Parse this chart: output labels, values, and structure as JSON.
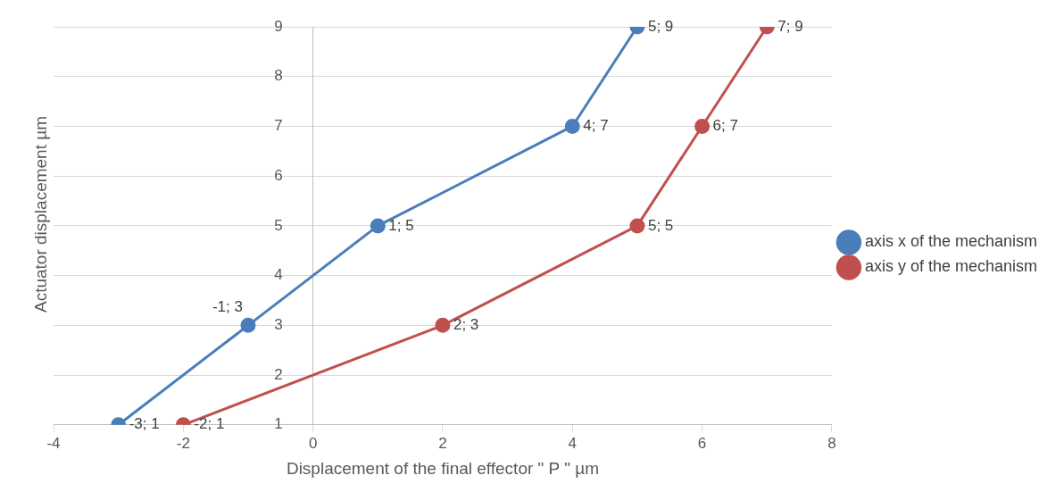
{
  "chart_data": {
    "type": "line",
    "xlabel": "Displacement of the final effector \" P \" µm",
    "ylabel": "Actuator displacement µm",
    "series": [
      {
        "name": "axis x of the mechanism",
        "color": "#4a7ebb",
        "x": [
          -3,
          -1,
          1,
          4,
          5
        ],
        "values": [
          1,
          3,
          5,
          7,
          9
        ],
        "value_labels": [
          "-3; 1",
          "-1; 3",
          "1; 5",
          "4; 7",
          "5; 9"
        ]
      },
      {
        "name": "axis y of the mechanism",
        "color": "#c0504d",
        "x": [
          -2,
          2,
          5,
          6,
          7
        ],
        "values": [
          1,
          3,
          5,
          7,
          9
        ],
        "value_labels": [
          "-2; 1",
          "2; 3",
          "5; 5",
          "6; 7",
          "7; 9"
        ]
      }
    ],
    "xlim": [
      -4,
      8
    ],
    "xticks": [
      -4,
      -2,
      0,
      2,
      4,
      6,
      8
    ],
    "ylim": [
      1,
      9
    ],
    "yticks": [
      1,
      2,
      3,
      4,
      5,
      6,
      7,
      8,
      9
    ],
    "grid": "y",
    "legend": "right",
    "marker": "circle",
    "line_style": "solid"
  }
}
